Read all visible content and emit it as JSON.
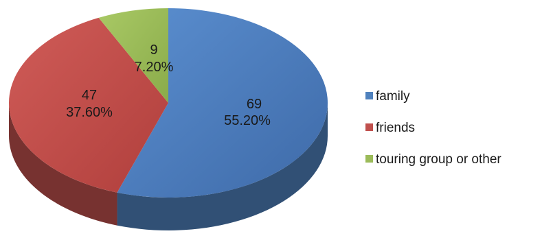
{
  "chart_data": {
    "type": "pie",
    "title": "",
    "slices": [
      {
        "name": "family",
        "value": 69,
        "percent": "55.20%",
        "color": "#4f81bd"
      },
      {
        "name": "friends",
        "value": 47,
        "percent": "37.60%",
        "color": "#c0504d"
      },
      {
        "name": "touring group or other",
        "value": 9,
        "percent": "7.20%",
        "color": "#9bbb59"
      }
    ],
    "labels": [
      {
        "value_text": "69",
        "percent_text": "55.20%"
      },
      {
        "value_text": "47",
        "percent_text": "37.60%"
      },
      {
        "value_text": "9",
        "percent_text": "7.20%"
      }
    ],
    "legend": {
      "position": "right",
      "items": [
        {
          "label": "family",
          "color": "#4f81bd"
        },
        {
          "label": "friends",
          "color": "#c0504d"
        },
        {
          "label": "touring group or other",
          "color": "#9bbb59"
        }
      ]
    },
    "style": "3d"
  }
}
